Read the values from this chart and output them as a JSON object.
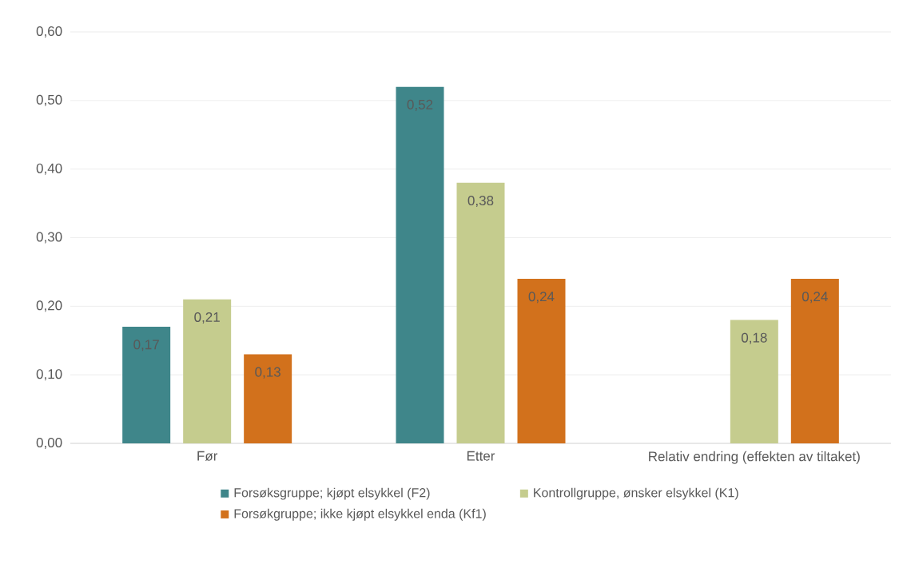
{
  "chart_data": {
    "type": "bar",
    "categories": [
      "Før",
      "Etter",
      "Relativ endring (effekten av tiltaket)"
    ],
    "series": [
      {
        "name": "Forsøksgruppe;  kjøpt elsykkel (F2)",
        "color": "#3f868a",
        "values": [
          0.17,
          0.52,
          null
        ],
        "value_labels": [
          "0,17",
          "0,52",
          null
        ]
      },
      {
        "name": "Kontrollgruppe, ønsker elsykkel (K1)",
        "color": "#c5cc8e",
        "values": [
          0.21,
          0.38,
          0.18
        ],
        "value_labels": [
          "0,21",
          "0,38",
          "0,18"
        ]
      },
      {
        "name": "Forsøkgruppe; ikke kjøpt elsykkel enda (Kf1)",
        "color": "#d2711c",
        "values": [
          0.13,
          0.24,
          0.24
        ],
        "value_labels": [
          "0,13",
          "0,24",
          "0,24"
        ]
      }
    ],
    "ylim": [
      0,
      0.6
    ],
    "yticks": [
      {
        "value": 0,
        "label": "0,00"
      },
      {
        "value": 0.1,
        "label": "0,10"
      },
      {
        "value": 0.2,
        "label": "0,20"
      },
      {
        "value": 0.3,
        "label": "0,30"
      },
      {
        "value": 0.4,
        "label": "0,40"
      },
      {
        "value": 0.5,
        "label": "0,50"
      },
      {
        "value": 0.6,
        "label": "0,60"
      }
    ],
    "grid": "y",
    "legend": "bottom"
  }
}
